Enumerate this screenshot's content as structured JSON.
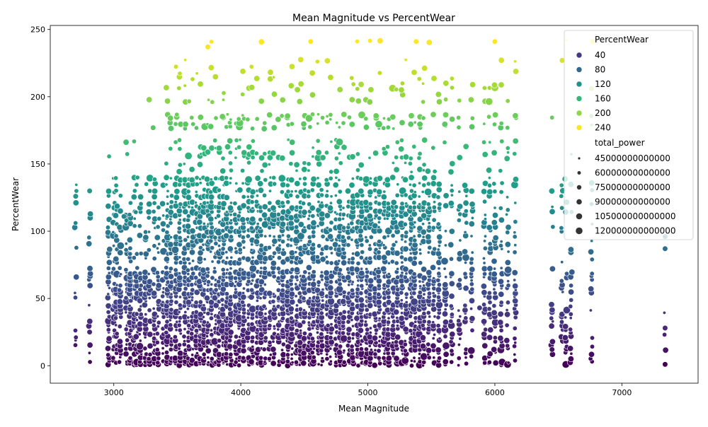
{
  "chart_data": {
    "type": "scatter",
    "title": "Mean Magnitude vs PercentWear",
    "xlabel": "Mean Magnitude",
    "ylabel": "PercentWear",
    "xlim": [
      2500,
      7600
    ],
    "ylim": [
      -13,
      253
    ],
    "xticks": [
      3000,
      4000,
      5000,
      6000,
      7000
    ],
    "yticks": [
      0,
      50,
      100,
      150,
      200,
      250
    ],
    "grid": false,
    "legend_placement": "top-right",
    "hue": {
      "title": "PercentWear",
      "colormap": "viridis",
      "range": [
        0,
        241
      ],
      "entries": [
        {
          "label": "40",
          "color": "#443983"
        },
        {
          "label": "80",
          "color": "#31688e"
        },
        {
          "label": "120",
          "color": "#21918c"
        },
        {
          "label": "160",
          "color": "#35b779"
        },
        {
          "label": "200",
          "color": "#90d743"
        },
        {
          "label": "240",
          "color": "#fde725"
        }
      ]
    },
    "size": {
      "title": "total_power",
      "entries": [
        {
          "label": "45000000000000",
          "value": 45000000000000
        },
        {
          "label": "60000000000000",
          "value": 60000000000000
        },
        {
          "label": "75000000000000",
          "value": 75000000000000
        },
        {
          "label": "90000000000000",
          "value": 90000000000000
        },
        {
          "label": "105000000000000",
          "value": 105000000000000
        },
        {
          "label": "120000000000000",
          "value": 120000000000000
        }
      ]
    },
    "x_columns": [
      2700,
      2810,
      2960,
      3000,
      3020,
      3050,
      3100,
      3130,
      3160,
      3180,
      3210,
      3250,
      3280,
      3320,
      3350,
      3390,
      3420,
      3450,
      3490,
      3520,
      3560,
      3590,
      3620,
      3650,
      3680,
      3710,
      3740,
      3770,
      3800,
      3830,
      3860,
      3890,
      3920,
      3960,
      3990,
      4020,
      4060,
      4090,
      4130,
      4160,
      4190,
      4230,
      4260,
      4300,
      4330,
      4370,
      4400,
      4440,
      4470,
      4500,
      4540,
      4570,
      4610,
      4640,
      4680,
      4710,
      4750,
      4780,
      4810,
      4850,
      4880,
      4920,
      4950,
      4990,
      5020,
      5060,
      5090,
      5130,
      5160,
      5200,
      5230,
      5270,
      5300,
      5340,
      5370,
      5410,
      5440,
      5480,
      5520,
      5560,
      5610,
      5660,
      5720,
      5770,
      5820,
      5920,
      5960,
      6000,
      6050,
      6100,
      6160,
      6450,
      6530,
      6560,
      6600,
      6760,
      7340
    ],
    "wear_levels": [
      1,
      3,
      6,
      9,
      12,
      15,
      18,
      21,
      24,
      27,
      30,
      33,
      36,
      39,
      42,
      45,
      48,
      51,
      54,
      57,
      60,
      63,
      66,
      69,
      72,
      77,
      80,
      84,
      87,
      90,
      93,
      96,
      100,
      103,
      106,
      109,
      112,
      115,
      118,
      121,
      126,
      130,
      135,
      139,
      145,
      150,
      155,
      158,
      162,
      167,
      177,
      180,
      184,
      186,
      197,
      202,
      206,
      209,
      214,
      218,
      222,
      227,
      241
    ],
    "sample_points": [
      {
        "x": 3740,
        "y": 237
      },
      {
        "x": 4550,
        "y": 241
      },
      {
        "x": 5380,
        "y": 241
      },
      {
        "x": 6000,
        "y": 241
      },
      {
        "x": 6770,
        "y": 241
      },
      {
        "x": 3310,
        "y": 177
      },
      {
        "x": 6760,
        "y": 206
      },
      {
        "x": 6530,
        "y": 227
      },
      {
        "x": 2700,
        "y": 126
      },
      {
        "x": 2810,
        "y": 130
      },
      {
        "x": 2810,
        "y": 25
      },
      {
        "x": 3080,
        "y": 111
      },
      {
        "x": 5880,
        "y": 43
      },
      {
        "x": 6450,
        "y": 12
      },
      {
        "x": 7340,
        "y": 96
      },
      {
        "x": 7340,
        "y": 87
      },
      {
        "x": 7340,
        "y": 28
      },
      {
        "x": 7340,
        "y": 1
      }
    ]
  }
}
